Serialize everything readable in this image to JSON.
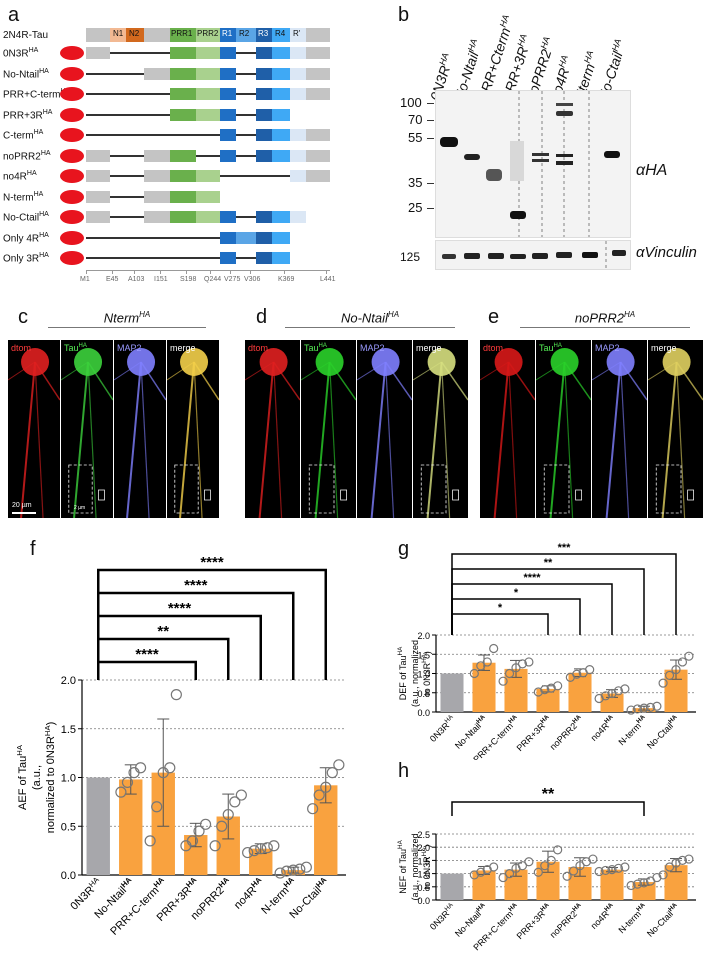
{
  "panels": {
    "a": "a",
    "b": "b",
    "c": "c",
    "d": "d",
    "e": "e",
    "f": "f",
    "g": "g",
    "h": "h"
  },
  "panel_a": {
    "header_label": "2N4R-Tau",
    "domains": [
      "N1",
      "N2",
      "PRR1",
      "PRR2",
      "R1",
      "R2",
      "R3",
      "R4",
      "R'"
    ],
    "constructs": [
      "0N3R",
      "No-Ntail",
      "PRR+C-term",
      "PRR+3R",
      "C-term",
      "noPRR2",
      "no4R",
      "N-term",
      "No-Ctail",
      "Only 4R",
      "Only 3R"
    ],
    "tag": "HA",
    "axis_ticks": [
      "M1",
      "E45",
      "A103",
      "I151",
      "S198",
      "Q244",
      "V275",
      "V306",
      "K369",
      "L441"
    ]
  },
  "panel_b": {
    "lanes": [
      "0N3R",
      "No-Ntail",
      "PRR+Cterm",
      "PRR+3R",
      "noPRR2",
      "no4R",
      "Nterm",
      "No-Ctail"
    ],
    "tag": "HA",
    "mw_markers": [
      "100",
      "70",
      "55",
      "35",
      "25"
    ],
    "mw_bottom": "125",
    "blot_labels": [
      "αHA",
      "αVinculin"
    ]
  },
  "panel_c": {
    "title": "Nterm",
    "tag": "HA",
    "channels": [
      "dtom",
      "Tau",
      "MAP2",
      "merge"
    ],
    "scale": "20 µm",
    "inset_scale": "2 µm"
  },
  "panel_d": {
    "title": "No-Ntail",
    "tag": "HA",
    "channels": [
      "dtom",
      "Tau",
      "MAP2",
      "merge"
    ]
  },
  "panel_e": {
    "title": "noPRR2",
    "tag": "HA",
    "channels": [
      "dtom",
      "Tau",
      "MAP2",
      "merge"
    ]
  },
  "colors": {
    "orange": "#f9a23f",
    "gray": "#a7a7ab",
    "red": "#e8141e"
  },
  "chart_data": [
    {
      "panel": "f",
      "type": "bar",
      "ylabel_lines": [
        "AEF of Tau",
        "(a.u.,",
        "normalized to 0N3R"
      ],
      "ylabel_tag": "HA",
      "ylim": [
        0,
        2.0
      ],
      "yticks": [
        "0.0",
        "0.5",
        "1.0",
        "1.5",
        "2.0"
      ],
      "categories": [
        "0N3R",
        "No-Ntail",
        "PRR+C-term",
        "PRR+3R",
        "noPRR2",
        "no4R",
        "N-term",
        "No-Ctail"
      ],
      "values": [
        1.0,
        0.98,
        1.05,
        0.41,
        0.6,
        0.27,
        0.05,
        0.92
      ],
      "errors": [
        0.0,
        0.15,
        0.55,
        0.12,
        0.23,
        0.05,
        0.03,
        0.18
      ],
      "points": [
        [
          1,
          1,
          1,
          1
        ],
        [
          0.85,
          0.95,
          1.05,
          1.1
        ],
        [
          0.35,
          0.7,
          1.05,
          1.1,
          1.85
        ],
        [
          0.3,
          0.35,
          0.45,
          0.52
        ],
        [
          0.3,
          0.5,
          0.62,
          0.75,
          0.82
        ],
        [
          0.23,
          0.25,
          0.27,
          0.28,
          0.3
        ],
        [
          0.02,
          0.04,
          0.05,
          0.06,
          0.08
        ],
        [
          0.68,
          0.82,
          0.9,
          1.05,
          1.13
        ]
      ],
      "significance": [
        {
          "to": "PRR+3R",
          "label": "****"
        },
        {
          "to": "noPRR2",
          "label": "**"
        },
        {
          "to": "no4R",
          "label": "****"
        },
        {
          "to": "N-term",
          "label": "****"
        },
        {
          "to": "No-Ctail",
          "label": "****"
        }
      ]
    },
    {
      "panel": "g",
      "type": "bar",
      "ylabel_lines": [
        "DEF of Tau",
        "(a.u., normalized",
        "to 0N3R"
      ],
      "ylabel_tag": "HA",
      "ylim": [
        0,
        2.0
      ],
      "yticks": [
        "0.0",
        "0.5",
        "1.0",
        "1.5",
        "2.0"
      ],
      "categories": [
        "0N3R",
        "No-Ntail",
        "PRR+C-term",
        "PRR+3R",
        "noPRR2",
        "no4R",
        "N-term",
        "No-Ctail"
      ],
      "values": [
        1.0,
        1.28,
        1.12,
        0.6,
        1.02,
        0.48,
        0.1,
        1.1
      ],
      "errors": [
        0.0,
        0.2,
        0.22,
        0.08,
        0.1,
        0.1,
        0.05,
        0.25
      ],
      "points": [
        [
          1,
          1,
          1,
          1
        ],
        [
          1.0,
          1.2,
          1.3,
          1.65
        ],
        [
          0.8,
          1.0,
          1.15,
          1.25,
          1.3
        ],
        [
          0.52,
          0.58,
          0.62,
          0.68
        ],
        [
          0.9,
          0.98,
          1.02,
          1.1
        ],
        [
          0.35,
          0.42,
          0.48,
          0.55,
          0.6
        ],
        [
          0.05,
          0.08,
          0.1,
          0.12,
          0.15
        ],
        [
          0.75,
          0.95,
          1.1,
          1.3,
          1.45
        ]
      ],
      "significance": [
        {
          "to": "PRR+3R",
          "label": "*"
        },
        {
          "to": "noPRR2",
          "label": "*"
        },
        {
          "to": "no4R",
          "label": "****"
        },
        {
          "to": "N-term",
          "label": "**"
        },
        {
          "to": "No-Ctail",
          "label": "***"
        }
      ]
    },
    {
      "panel": "h",
      "type": "bar",
      "ylabel_lines": [
        "NEF of Tau",
        "(a.u., normalized",
        "to 0N3R"
      ],
      "ylabel_tag": "HA",
      "ylim": [
        0,
        2.5
      ],
      "yticks": [
        "0.0",
        "0.5",
        "1.0",
        "1.5",
        "2.0",
        "2.5"
      ],
      "categories": [
        "0N3R",
        "No-Ntail",
        "PRR+C-term",
        "PRR+3R",
        "noPRR2",
        "no4R",
        "N-term",
        "No-Ctail"
      ],
      "values": [
        1.0,
        1.12,
        1.15,
        1.45,
        1.25,
        1.15,
        0.68,
        1.32
      ],
      "errors": [
        0.0,
        0.15,
        0.25,
        0.4,
        0.35,
        0.08,
        0.12,
        0.25
      ],
      "points": [
        [
          1,
          1,
          1,
          1
        ],
        [
          0.95,
          1.05,
          1.15,
          1.25
        ],
        [
          0.85,
          1.0,
          1.2,
          1.3,
          1.45
        ],
        [
          1.05,
          1.3,
          1.5,
          1.9
        ],
        [
          0.9,
          1.1,
          1.3,
          1.45,
          1.55
        ],
        [
          1.08,
          1.12,
          1.15,
          1.2,
          1.25
        ],
        [
          0.55,
          0.6,
          0.65,
          0.72,
          0.85
        ],
        [
          0.95,
          1.25,
          1.4,
          1.5,
          1.55
        ]
      ],
      "significance": [
        {
          "to": "N-term",
          "label": "**"
        }
      ]
    }
  ]
}
